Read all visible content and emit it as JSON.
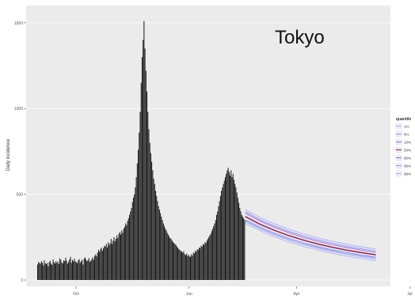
{
  "chart_data": {
    "type": "bar",
    "title": "Tokyo",
    "xlabel": "",
    "ylabel": "Daily incidence",
    "ylim": [
      0,
      1550
    ],
    "yticks": [
      0,
      500,
      1000,
      1500
    ],
    "xlim": [
      0,
      352
    ],
    "xticks": [
      {
        "pos": 40,
        "label": "Oct"
      },
      {
        "pos": 157,
        "label": "Jan"
      },
      {
        "pos": 268,
        "label": "Apr"
      },
      {
        "pos": 385,
        "label": "Jul"
      }
    ],
    "grid": true,
    "legend": {
      "title": "quantile",
      "position": "right",
      "items": [
        "1%",
        "5%",
        "10%",
        "50%",
        "90%",
        "95%",
        "99%"
      ]
    },
    "observed_start": 0,
    "observed_values": [
      90,
      105,
      100,
      95,
      110,
      102,
      85,
      115,
      98,
      92,
      100,
      80,
      105,
      112,
      95,
      88,
      120,
      104,
      96,
      110,
      100,
      108,
      92,
      125,
      118,
      102,
      97,
      115,
      110,
      130,
      112,
      95,
      105,
      120,
      135,
      100,
      118,
      110,
      125,
      108,
      105,
      98,
      115,
      122,
      100,
      110,
      118,
      90,
      125,
      132,
      120,
      110,
      115,
      128,
      105,
      112,
      122,
      132,
      118,
      140,
      150,
      138,
      160,
      175,
      165,
      180,
      190,
      170,
      185,
      200,
      195,
      210,
      190,
      220,
      205,
      215,
      240,
      210,
      230,
      250,
      225,
      240,
      260,
      245,
      270,
      280,
      265,
      290,
      275,
      300,
      310,
      330,
      320,
      345,
      360,
      380,
      400,
      420,
      455,
      480,
      500,
      540,
      600,
      680,
      760,
      860,
      980,
      1150,
      1300,
      1400,
      1510,
      1350,
      1220,
      1100,
      980,
      880,
      800,
      740,
      690,
      640,
      590,
      560,
      520,
      490,
      460,
      430,
      410,
      390,
      370,
      350,
      330,
      315,
      300,
      290,
      275,
      265,
      255,
      245,
      240,
      230,
      222,
      215,
      210,
      205,
      195,
      188,
      180,
      175,
      170,
      165,
      160,
      168,
      150,
      145,
      155,
      140,
      148,
      138,
      135,
      150,
      142,
      160,
      155,
      170,
      165,
      180,
      175,
      190,
      185,
      200,
      195,
      210,
      205,
      220,
      215,
      230,
      240,
      250,
      260,
      270,
      285,
      300,
      315,
      330,
      350,
      380,
      400,
      430,
      460,
      490,
      520,
      540,
      560,
      580,
      600,
      620,
      640,
      655,
      630,
      610,
      640,
      600,
      620,
      585,
      560,
      540,
      510,
      480,
      450,
      420,
      400,
      380,
      370,
      360,
      350
    ],
    "forecast_start": 215,
    "forecast_x": [
      215,
      230,
      245,
      260,
      275,
      290,
      305,
      320,
      335,
      350
    ],
    "forecast_series": [
      {
        "name": "1%",
        "color": "#a9b0ee",
        "values": [
          330,
          288,
          252,
          222,
          196,
          174,
          155,
          139,
          125,
          113
        ]
      },
      {
        "name": "5%",
        "color": "#8f96e0",
        "values": [
          342,
          300,
          264,
          234,
          208,
          186,
          167,
          151,
          137,
          125
        ]
      },
      {
        "name": "10%",
        "color": "#7a6fcf",
        "values": [
          350,
          308,
          272,
          242,
          216,
          194,
          175,
          159,
          145,
          133
        ]
      },
      {
        "name": "50%",
        "color": "#8b1a3a",
        "values": [
          370,
          326,
          290,
          259,
          233,
          210,
          191,
          174,
          160,
          147
        ]
      },
      {
        "name": "90%",
        "color": "#a35fb5",
        "values": [
          390,
          345,
          308,
          276,
          249,
          226,
          206,
          189,
          174,
          161
        ]
      },
      {
        "name": "95%",
        "color": "#8f96e0",
        "values": [
          398,
          353,
          316,
          284,
          257,
          234,
          214,
          197,
          182,
          169
        ]
      },
      {
        "name": "99%",
        "color": "#a9b0ee",
        "values": [
          410,
          366,
          329,
          297,
          270,
          246,
          226,
          209,
          194,
          181
        ]
      }
    ]
  }
}
